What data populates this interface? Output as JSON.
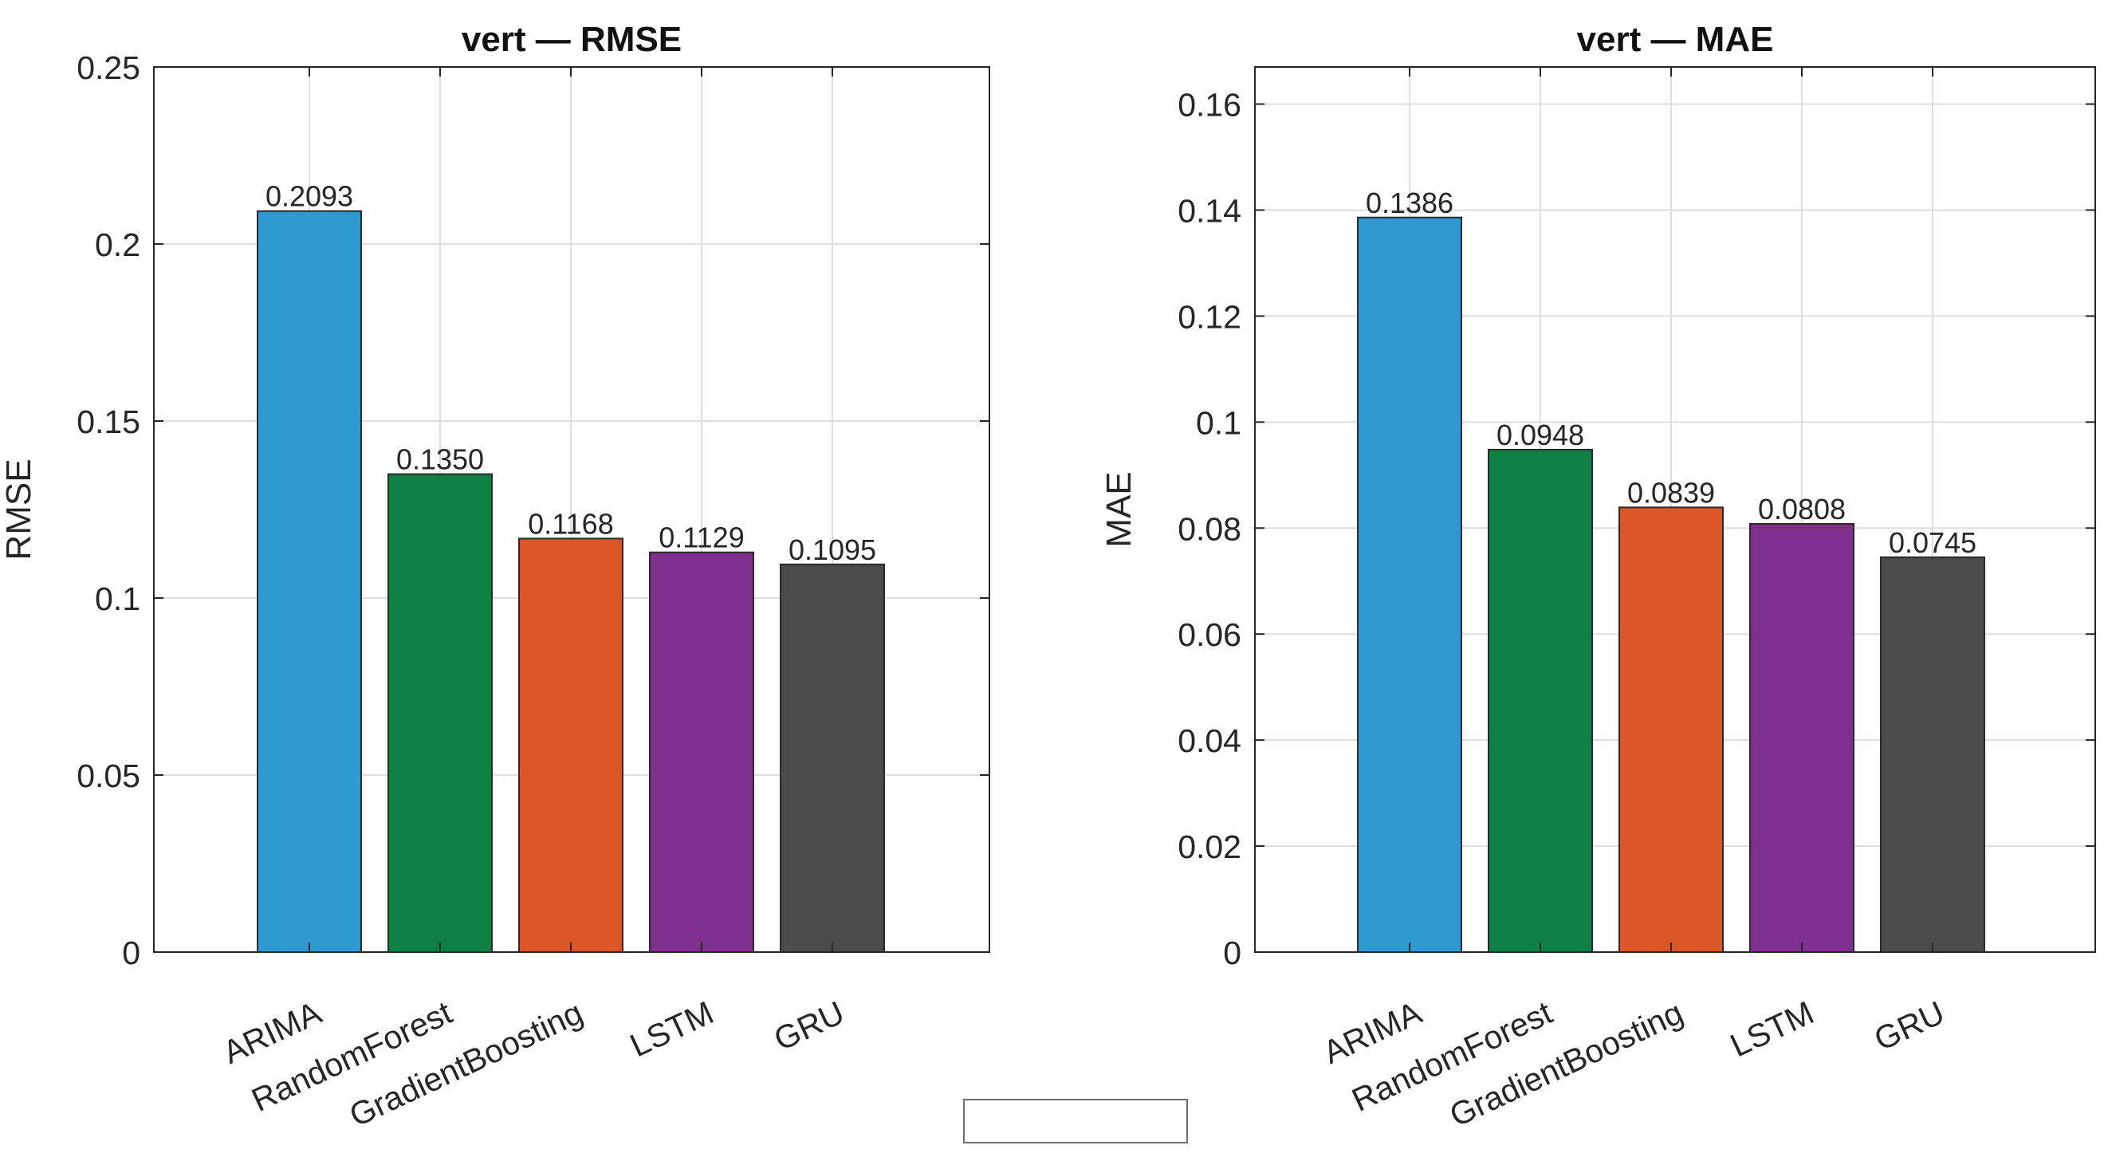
{
  "chart_data": [
    {
      "type": "bar",
      "title": "vert — RMSE",
      "xlabel": "",
      "ylabel": "RMSE",
      "categories": [
        "ARIMA",
        "RandomForest",
        "GradientBoosting",
        "LSTM",
        "GRU"
      ],
      "values": [
        0.2093,
        0.135,
        0.1168,
        0.1129,
        0.1095
      ],
      "value_labels": [
        "0.2093",
        "0.1350",
        "0.1168",
        "0.1129",
        "0.1095"
      ],
      "ylim": [
        0,
        0.25
      ],
      "yticks": [
        0,
        0.05,
        0.1,
        0.15,
        0.2,
        0.25
      ],
      "ytick_labels": [
        "0",
        "0.05",
        "0.1",
        "0.15",
        "0.2",
        "0.25"
      ],
      "grid": true,
      "colors": [
        "#2e9ad0",
        "#0e8043",
        "#da5627",
        "#7e2f8e",
        "#4b4b4b"
      ]
    },
    {
      "type": "bar",
      "title": "vert — MAE",
      "xlabel": "",
      "ylabel": "MAE",
      "categories": [
        "ARIMA",
        "RandomForest",
        "GradientBoosting",
        "LSTM",
        "GRU"
      ],
      "values": [
        0.1386,
        0.0948,
        0.0839,
        0.0808,
        0.0745
      ],
      "value_labels": [
        "0.1386",
        "0.0948",
        "0.0839",
        "0.0808",
        "0.0745"
      ],
      "ylim": [
        0,
        0.167
      ],
      "yticks": [
        0,
        0.02,
        0.04,
        0.06,
        0.08,
        0.1,
        0.12,
        0.14,
        0.16
      ],
      "ytick_labels": [
        "0",
        "0.02",
        "0.04",
        "0.06",
        "0.08",
        "0.1",
        "0.12",
        "0.14",
        "0.16"
      ],
      "grid": true,
      "colors": [
        "#2e9ad0",
        "#0e8043",
        "#da5627",
        "#7e2f8e",
        "#4b4b4b"
      ]
    }
  ],
  "legend": {
    "placement": "bottom-center",
    "entries": []
  }
}
